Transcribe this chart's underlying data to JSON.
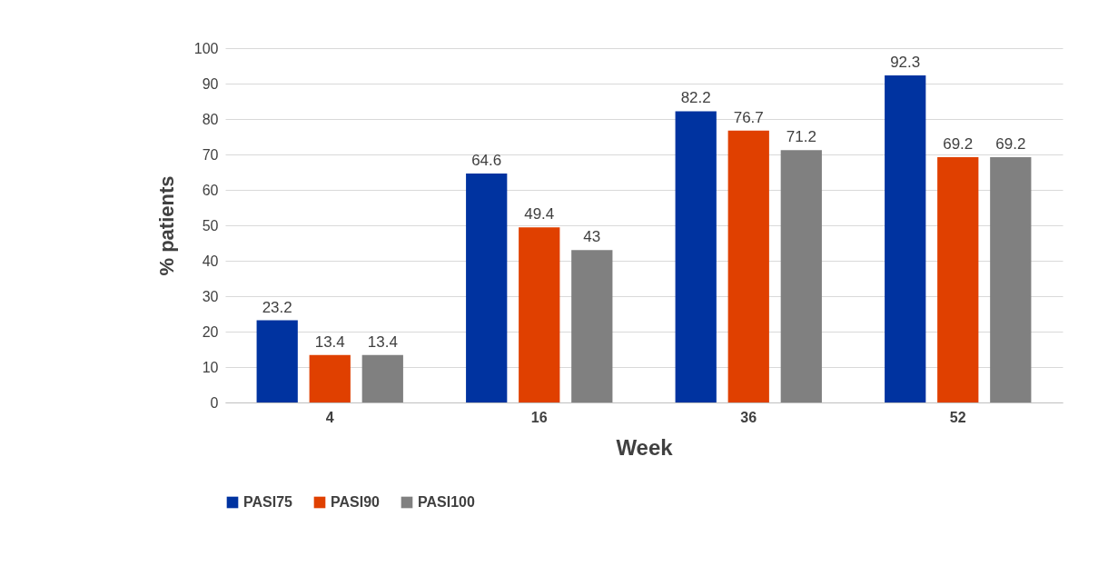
{
  "chart_data": {
    "type": "bar",
    "xlabel": "Week",
    "ylabel": "% patients",
    "categories": [
      "4",
      "16",
      "36",
      "52"
    ],
    "series": [
      {
        "name": "PASI75",
        "color": "#0033a0",
        "values": [
          23.2,
          64.6,
          82.2,
          92.3
        ]
      },
      {
        "name": "PASI90",
        "color": "#e04000",
        "values": [
          13.4,
          49.4,
          76.7,
          69.2
        ]
      },
      {
        "name": "PASI100",
        "color": "#808080",
        "values": [
          13.4,
          43,
          71.2,
          69.2
        ]
      }
    ],
    "ylim": [
      0,
      100
    ],
    "yticks": [
      0,
      10,
      20,
      30,
      40,
      50,
      60,
      70,
      80,
      90,
      100
    ],
    "grid": "y",
    "legend": "bottom",
    "data_labels": true
  }
}
